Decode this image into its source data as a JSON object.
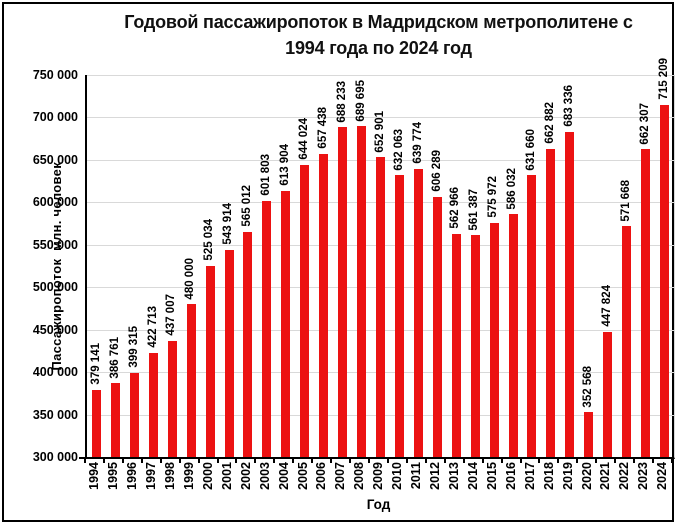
{
  "title": {
    "full": "Годовой пассажиропоток в Мадридском метрополитене с 1994 года по 2024 год",
    "lines": [
      "Годовой пассажиропоток в Мадридском метрополитене с",
      "1994 года по 2024 год"
    ]
  },
  "chart_data": {
    "type": "bar",
    "title": "Годовой пассажиропоток в Мадридском метрополитене с 1994 года по 2024 год",
    "xlabel": "Год",
    "ylabel": "Пассажиропоток  млн. человек",
    "categories": [
      "1994",
      "1995",
      "1996",
      "1997",
      "1998",
      "1999",
      "2000",
      "2001",
      "2002",
      "2003",
      "2004",
      "2005",
      "2006",
      "2007",
      "2008",
      "2009",
      "2010",
      "2011",
      "2012",
      "2013",
      "2014",
      "2015",
      "2016",
      "2017",
      "2018",
      "2019",
      "2020",
      "2021",
      "2022",
      "2023",
      "2024"
    ],
    "values": [
      379141,
      386761,
      399315,
      422713,
      437007,
      480000,
      525034,
      543914,
      565012,
      601803,
      613904,
      644024,
      657438,
      688233,
      689695,
      652901,
      632063,
      639774,
      606289,
      562966,
      561387,
      575972,
      586032,
      631660,
      662882,
      683336,
      352568,
      447824,
      571668,
      662307,
      715209
    ],
    "data_labels": [
      "379 141",
      "386 761",
      "399 315",
      "422 713",
      "437 007",
      "480 000",
      "525 034",
      "543 914",
      "565 012",
      "601 803",
      "613 904",
      "644 024",
      "657 438",
      "688 233",
      "689 695",
      "652 901",
      "632 063",
      "639 774",
      "606 289",
      "562 966",
      "561 387",
      "575 972",
      "586 032",
      "631 660",
      "662 882",
      "683 336",
      "352 568",
      "447 824",
      "571 668",
      "662 307",
      "715 209"
    ],
    "ylim": [
      300000,
      750000
    ],
    "ytick_step": 50000,
    "ytick_labels": [
      "300 000",
      "350 000",
      "400 000",
      "450 000",
      "500 000",
      "550 000",
      "600 000",
      "650 000",
      "700 000",
      "750 000"
    ],
    "grid": true,
    "legend": "none",
    "colors": {
      "bar": "#ec1212",
      "gridline": "#d9d9d9",
      "axis": "#000000",
      "text": "#000000",
      "background": "#ffffff",
      "figure_border": "#000000"
    },
    "thousands_separator": " "
  }
}
